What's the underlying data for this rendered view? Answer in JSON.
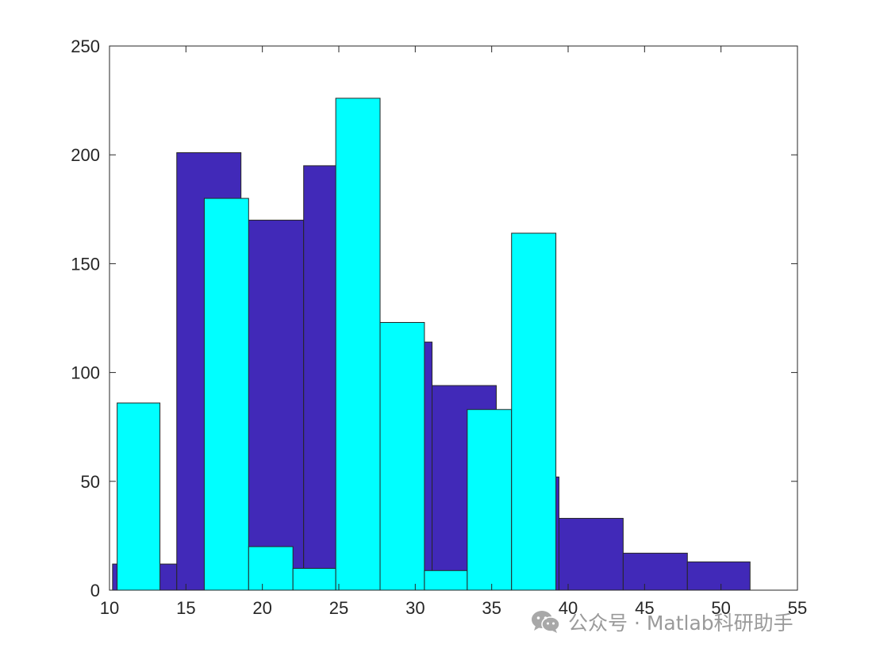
{
  "chart_data": {
    "type": "bar",
    "subtype": "overlaid-histogram",
    "title": "",
    "xlabel": "",
    "ylabel": "",
    "xlim": [
      10,
      55
    ],
    "ylim": [
      0,
      250
    ],
    "xticks": [
      10,
      15,
      20,
      25,
      30,
      35,
      40,
      45,
      50,
      55
    ],
    "yticks": [
      0,
      50,
      100,
      150,
      200,
      250
    ],
    "grid": false,
    "legend": "none",
    "series": [
      {
        "color": "#4129b8",
        "bins": [
          {
            "x0": 10.2,
            "x1": 14.4,
            "value": 12
          },
          {
            "x0": 14.4,
            "x1": 18.6,
            "value": 201
          },
          {
            "x0": 18.6,
            "x1": 22.7,
            "value": 170
          },
          {
            "x0": 22.7,
            "x1": 26.9,
            "value": 195
          },
          {
            "x0": 26.9,
            "x1": 31.1,
            "value": 114
          },
          {
            "x0": 31.1,
            "x1": 35.3,
            "value": 94
          },
          {
            "x0": 35.3,
            "x1": 39.4,
            "value": 52
          },
          {
            "x0": 39.4,
            "x1": 43.6,
            "value": 33
          },
          {
            "x0": 43.6,
            "x1": 47.8,
            "value": 17
          },
          {
            "x0": 47.8,
            "x1": 51.9,
            "value": 13
          }
        ]
      },
      {
        "color": "#00ffff",
        "bins": [
          {
            "x0": 10.5,
            "x1": 13.3,
            "value": 86
          },
          {
            "x0": 13.3,
            "x1": 16.2,
            "value": 0
          },
          {
            "x0": 16.2,
            "x1": 19.1,
            "value": 180
          },
          {
            "x0": 19.1,
            "x1": 22.0,
            "value": 20
          },
          {
            "x0": 22.0,
            "x1": 24.8,
            "value": 10
          },
          {
            "x0": 24.8,
            "x1": 27.7,
            "value": 226
          },
          {
            "x0": 27.7,
            "x1": 30.6,
            "value": 123
          },
          {
            "x0": 30.6,
            "x1": 33.4,
            "value": 9
          },
          {
            "x0": 33.4,
            "x1": 36.3,
            "value": 83
          },
          {
            "x0": 36.3,
            "x1": 39.2,
            "value": 164
          }
        ]
      }
    ]
  },
  "watermark": {
    "icon": "wechat-icon",
    "text": "公众号 · Matlab科研助手"
  }
}
